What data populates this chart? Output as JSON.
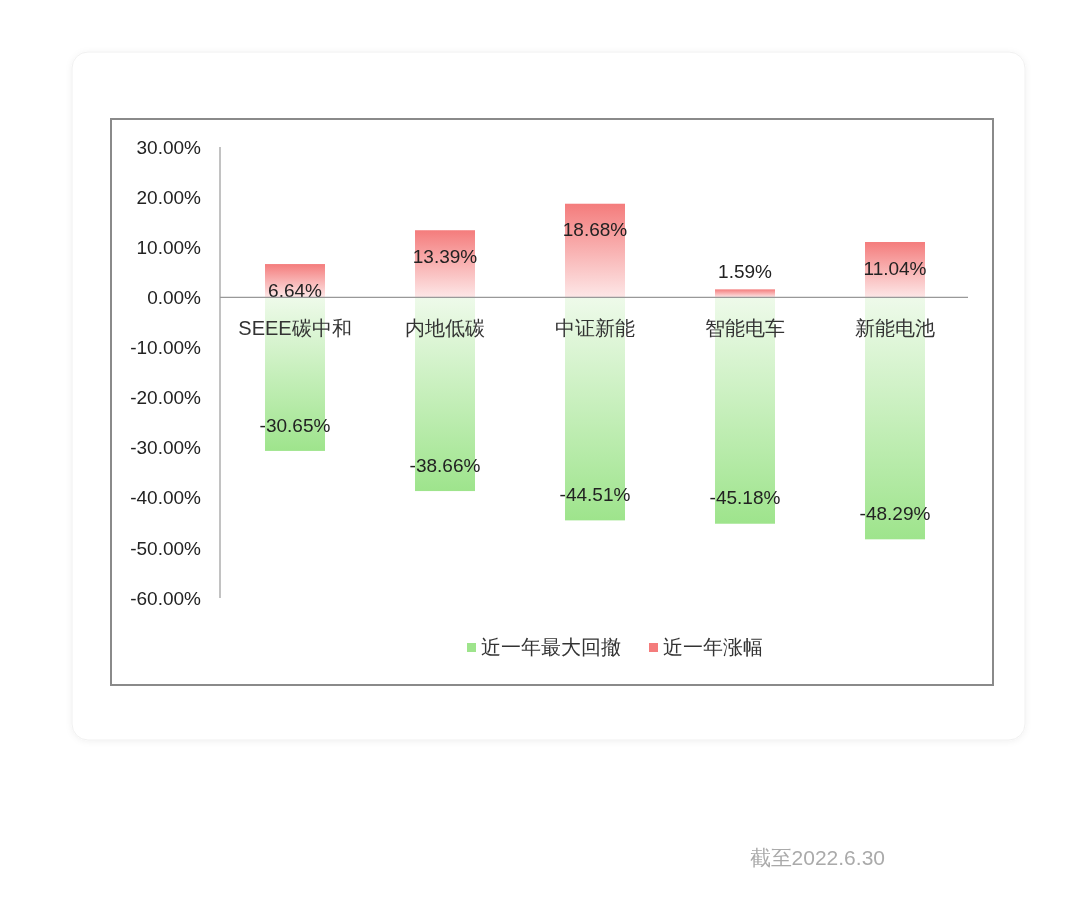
{
  "chart_data": {
    "type": "bar",
    "categories": [
      "SEEE碳中和",
      "内地低碳",
      "中证新能",
      "智能电车",
      "新能电池"
    ],
    "series": [
      {
        "name": "近一年最大回撤",
        "color": "#9ee48c",
        "values": [
          -30.65,
          -38.66,
          -44.51,
          -45.18,
          -48.29
        ],
        "value_labels": [
          "-30.65%",
          "-38.66%",
          "-44.51%",
          "-45.18%",
          "-48.29%"
        ]
      },
      {
        "name": "近一年涨幅",
        "color": "#f47c7c",
        "values": [
          6.64,
          13.39,
          18.68,
          1.59,
          11.04
        ],
        "value_labels": [
          "6.64%",
          "13.39%",
          "18.68%",
          "1.59%",
          "11.04%"
        ]
      }
    ],
    "stacked": true,
    "ylim": [
      -60,
      30
    ],
    "yticks": [
      {
        "value": 30,
        "label": "30.00%"
      },
      {
        "value": 20,
        "label": "20.00%"
      },
      {
        "value": 10,
        "label": "10.00%"
      },
      {
        "value": 0,
        "label": "0.00%"
      },
      {
        "value": -10,
        "label": "-10.00%"
      },
      {
        "value": -20,
        "label": "-20.00%"
      },
      {
        "value": -30,
        "label": "-30.00%"
      },
      {
        "value": -40,
        "label": "-40.00%"
      },
      {
        "value": -50,
        "label": "-50.00%"
      },
      {
        "value": -60,
        "label": "-60.00%"
      }
    ],
    "legend": "bottom",
    "annotations": [
      "截至2022.6.30"
    ]
  }
}
